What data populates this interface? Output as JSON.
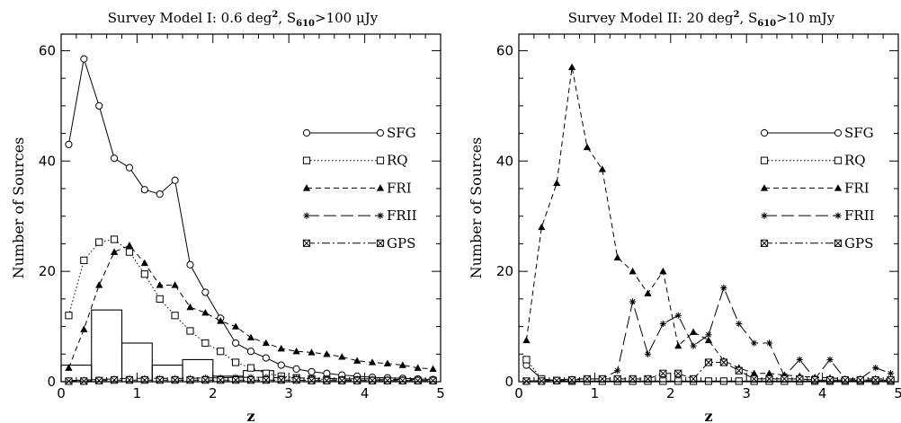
{
  "chart_data": [
    {
      "type": "line",
      "title": "Survey Model I: 0.6 deg², S₆₁₀>100 μJy",
      "title_parts": {
        "pre": "Survey Model I: 0.6 deg",
        "sup": "2",
        "mid": ", S",
        "sub": "610",
        "post": ">100 μJy"
      },
      "xlabel": "z",
      "ylabel": "Number of Sources",
      "xlim": [
        0,
        5
      ],
      "ylim": [
        0,
        63
      ],
      "xticks": [
        0,
        1,
        2,
        3,
        4,
        5
      ],
      "yticks": [
        0,
        20,
        40,
        60
      ],
      "legend_position": "right",
      "series": [
        {
          "name": "SFG",
          "style": "solid",
          "marker": "circle",
          "x": [
            0.1,
            0.3,
            0.5,
            0.7,
            0.9,
            1.1,
            1.3,
            1.5,
            1.7,
            1.9,
            2.1,
            2.3,
            2.5,
            2.7,
            2.9,
            3.1,
            3.3,
            3.5,
            3.7,
            3.9,
            4.1,
            4.3,
            4.5,
            4.7,
            4.9
          ],
          "y": [
            43,
            58.5,
            50,
            40.5,
            38.8,
            34.8,
            34,
            36.5,
            21.2,
            16.2,
            11.5,
            7,
            5.5,
            4.3,
            3,
            2.3,
            1.8,
            1.5,
            1.2,
            1,
            0.8,
            0.7,
            0.6,
            0.5,
            0.4
          ]
        },
        {
          "name": "RQ",
          "style": "dotted",
          "marker": "square",
          "x": [
            0.1,
            0.3,
            0.5,
            0.7,
            0.9,
            1.1,
            1.3,
            1.5,
            1.7,
            1.9,
            2.1,
            2.3,
            2.5,
            2.7,
            2.9,
            3.1,
            3.3,
            3.5,
            3.7,
            3.9,
            4.1,
            4.3,
            4.5,
            4.7,
            4.9
          ],
          "y": [
            12,
            22,
            25.3,
            25.8,
            23.5,
            19.5,
            15,
            12,
            9.2,
            7,
            5.5,
            3.5,
            2.5,
            1.5,
            1,
            0.7,
            0.5,
            0.4,
            0.3,
            0.3,
            0.2,
            0.2,
            0.2,
            0.2,
            0.2
          ]
        },
        {
          "name": "FRI",
          "style": "dashed",
          "marker": "triangle",
          "x": [
            0.1,
            0.3,
            0.5,
            0.7,
            0.9,
            1.1,
            1.3,
            1.5,
            1.7,
            1.9,
            2.1,
            2.3,
            2.5,
            2.7,
            2.9,
            3.1,
            3.3,
            3.5,
            3.7,
            3.9,
            4.1,
            4.3,
            4.5,
            4.7,
            4.9
          ],
          "y": [
            2.5,
            9.5,
            17.5,
            23.5,
            24.7,
            21.5,
            17.5,
            17.5,
            13.5,
            12.5,
            11,
            10,
            8,
            7,
            6,
            5.5,
            5.3,
            5,
            4.5,
            3.8,
            3.5,
            3.3,
            3,
            2.5,
            2.3
          ]
        },
        {
          "name": "FRII",
          "style": "longdash",
          "marker": "asterisk",
          "x": [
            0.1,
            0.3,
            0.5,
            0.7,
            0.9,
            1.1,
            1.3,
            1.5,
            1.7,
            1.9,
            2.1,
            2.3,
            2.5,
            2.7,
            2.9,
            3.1,
            3.3,
            3.5,
            3.7,
            3.9,
            4.1,
            4.3,
            4.5,
            4.7,
            4.9
          ],
          "y": [
            0.2,
            0.3,
            0.4,
            0.5,
            0.6,
            0.6,
            0.6,
            0.6,
            0.6,
            0.7,
            0.7,
            0.8,
            0.8,
            0.8,
            0.7,
            0.7,
            0.6,
            0.6,
            0.5,
            0.5,
            0.5,
            0.4,
            0.4,
            0.4,
            0.4
          ]
        },
        {
          "name": "GPS",
          "style": "dashdot",
          "marker": "crossbox",
          "x": [
            0.1,
            0.3,
            0.5,
            0.7,
            0.9,
            1.1,
            1.3,
            1.5,
            1.7,
            1.9,
            2.1,
            2.3,
            2.5,
            2.7,
            2.9,
            3.1,
            3.3,
            3.5,
            3.7,
            3.9,
            4.1,
            4.3,
            4.5,
            4.7,
            4.9
          ],
          "y": [
            0.1,
            0.1,
            0.2,
            0.3,
            0.3,
            0.3,
            0.3,
            0.3,
            0.3,
            0.3,
            0.3,
            0.3,
            0.3,
            0.3,
            0.3,
            0.3,
            0.2,
            0.2,
            0.2,
            0.2,
            0.2,
            0.2,
            0.2,
            0.2,
            0.2
          ]
        }
      ],
      "histogram": {
        "bin_edges": [
          0,
          0.4,
          0.8,
          1.2,
          1.6,
          2.0,
          2.4,
          2.8,
          3.2,
          3.6,
          4.0,
          4.4,
          4.8
        ],
        "counts": [
          3,
          13,
          7,
          3,
          4,
          1,
          2,
          0,
          0,
          0,
          0,
          0
        ]
      }
    },
    {
      "type": "line",
      "title": "Survey Model II: 20 deg², S₆₁₀>10 mJy",
      "title_parts": {
        "pre": "Survey Model II: 20 deg",
        "sup": "2",
        "mid": ", S",
        "sub": "610",
        "post": ">10 mJy"
      },
      "xlabel": "z",
      "ylabel": "Number of Sources",
      "xlim": [
        0,
        5
      ],
      "ylim": [
        0,
        63
      ],
      "xticks": [
        0,
        1,
        2,
        3,
        4,
        5
      ],
      "yticks": [
        0,
        20,
        40,
        60
      ],
      "legend_position": "right",
      "series": [
        {
          "name": "SFG",
          "style": "solid",
          "marker": "circle",
          "x": [
            0.1,
            0.3,
            0.5,
            0.7,
            0.9,
            1.1,
            1.3,
            1.5,
            1.7,
            1.9,
            2.1,
            2.3,
            2.5,
            2.7,
            2.9,
            3.1,
            3.3,
            3.5,
            3.7,
            3.9,
            4.1,
            4.3,
            4.5,
            4.7,
            4.9
          ],
          "y": [
            3,
            0.5,
            0.2,
            0.1,
            0.1,
            0.1,
            0.1,
            0.1,
            0.1,
            0.1,
            0.1,
            0.1,
            0.1,
            0.1,
            0.1,
            0.1,
            0.1,
            0.1,
            0.1,
            0.1,
            0.1,
            0.1,
            0.1,
            0.1,
            0.1
          ]
        },
        {
          "name": "RQ",
          "style": "dotted",
          "marker": "square",
          "x": [
            0.1,
            0.3,
            0.5,
            0.7,
            0.9,
            1.1,
            1.3,
            1.5,
            1.7,
            1.9,
            2.1,
            2.3,
            2.5,
            2.7,
            2.9,
            3.1,
            3.3,
            3.5,
            3.7,
            3.9,
            4.1,
            4.3,
            4.5,
            4.7,
            4.9
          ],
          "y": [
            4,
            0.5,
            0.2,
            0.1,
            0.1,
            0.1,
            0.1,
            0.1,
            0.1,
            0.1,
            0.1,
            0.1,
            0.1,
            0.1,
            0.1,
            0.1,
            0.1,
            0.1,
            0.1,
            0.1,
            0.1,
            0.1,
            0.1,
            0.1,
            0.1
          ]
        },
        {
          "name": "FRI",
          "style": "dashed",
          "marker": "triangle",
          "x": [
            0.1,
            0.3,
            0.5,
            0.7,
            0.9,
            1.1,
            1.3,
            1.5,
            1.7,
            1.9,
            2.1,
            2.3,
            2.5,
            2.7,
            2.9,
            3.1,
            3.3,
            3.5,
            3.7,
            3.9,
            4.1,
            4.3,
            4.5,
            4.7,
            4.9
          ],
          "y": [
            7.5,
            28,
            36,
            57,
            42.5,
            38.5,
            22.5,
            20,
            16,
            20,
            6.5,
            9,
            7.5,
            3.8,
            2.5,
            1.5,
            1.5,
            1.2,
            1,
            0.8,
            0.7,
            0.5,
            0.5,
            0.5,
            0.5
          ]
        },
        {
          "name": "FRII",
          "style": "longdash",
          "marker": "asterisk",
          "x": [
            0.1,
            0.3,
            0.5,
            0.7,
            0.9,
            1.1,
            1.3,
            1.5,
            1.7,
            1.9,
            2.1,
            2.3,
            2.5,
            2.7,
            2.9,
            3.1,
            3.3,
            3.5,
            3.7,
            3.9,
            4.1,
            4.3,
            4.5,
            4.7,
            4.9
          ],
          "y": [
            0.1,
            0.2,
            0.3,
            0.5,
            0.5,
            0.5,
            2,
            14.5,
            5,
            10.5,
            12,
            6.5,
            8.5,
            17,
            10.5,
            7,
            7,
            1,
            4,
            0.5,
            4,
            0.5,
            0.5,
            2.5,
            1.5
          ]
        },
        {
          "name": "GPS",
          "style": "dashdot",
          "marker": "crossbox",
          "x": [
            0.1,
            0.3,
            0.5,
            0.7,
            0.9,
            1.1,
            1.3,
            1.5,
            1.7,
            1.9,
            2.1,
            2.3,
            2.5,
            2.7,
            2.9,
            3.1,
            3.3,
            3.5,
            3.7,
            3.9,
            4.1,
            4.3,
            4.5,
            4.7,
            4.9
          ],
          "y": [
            0.1,
            0.1,
            0.2,
            0.3,
            0.5,
            0.5,
            0.5,
            0.5,
            0.5,
            1.5,
            1.5,
            0.5,
            3.5,
            3.5,
            2,
            0.5,
            0.5,
            0.5,
            0.5,
            0.3,
            0.3,
            0.3,
            0.3,
            0.3,
            0.3
          ]
        }
      ]
    }
  ]
}
